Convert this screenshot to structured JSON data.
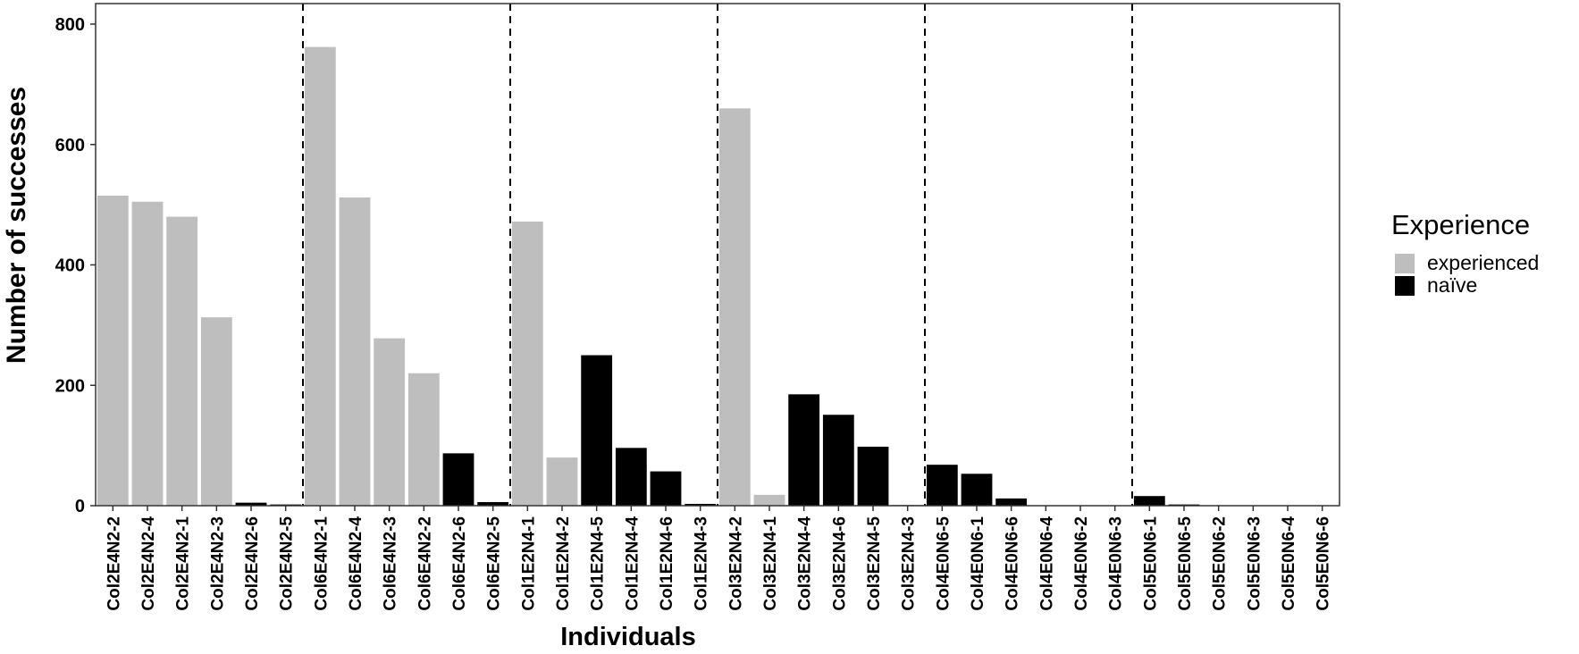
{
  "chart_data": {
    "type": "bar",
    "xlabel": "Individuals",
    "ylabel": "Number of successes",
    "ylim": [
      0,
      800
    ],
    "y_ticks": [
      0,
      200,
      400,
      600,
      800
    ],
    "grid": false,
    "legend": {
      "title": "Experience",
      "placement": "right",
      "entries": [
        {
          "label": "experienced",
          "color": "#bebebe"
        },
        {
          "label": "naïve",
          "color": "#000000"
        }
      ]
    },
    "group_separators_after": [
      "Col2E4N2-5",
      "Col6E4N2-5",
      "Col1E2N4-3",
      "Col3E2N4-3",
      "Col4E0N6-3"
    ],
    "categories": [
      "Col2E4N2-2",
      "Col2E4N2-4",
      "Col2E4N2-1",
      "Col2E4N2-3",
      "Col2E4N2-6",
      "Col2E4N2-5",
      "Col6E4N2-1",
      "Col6E4N2-4",
      "Col6E4N2-3",
      "Col6E4N2-2",
      "Col6E4N2-6",
      "Col6E4N2-5",
      "Col1E2N4-1",
      "Col1E2N4-2",
      "Col1E2N4-5",
      "Col1E2N4-4",
      "Col1E2N4-6",
      "Col1E2N4-3",
      "Col3E2N4-2",
      "Col3E2N4-1",
      "Col3E2N4-4",
      "Col3E2N4-6",
      "Col3E2N4-5",
      "Col3E2N4-3",
      "Col4E0N6-5",
      "Col4E0N6-1",
      "Col4E0N6-6",
      "Col4E0N6-4",
      "Col4E0N6-2",
      "Col4E0N6-3",
      "Col5E0N6-1",
      "Col5E0N6-5",
      "Col5E0N6-2",
      "Col5E0N6-3",
      "Col5E0N6-4",
      "Col5E0N6-6"
    ],
    "values": [
      515,
      505,
      480,
      313,
      5,
      2,
      762,
      512,
      278,
      220,
      87,
      6,
      472,
      80,
      250,
      96,
      57,
      3,
      660,
      18,
      185,
      151,
      98,
      1,
      68,
      53,
      12,
      0,
      0,
      0,
      16,
      2,
      0,
      0,
      0,
      0
    ],
    "experience": [
      "experienced",
      "experienced",
      "experienced",
      "experienced",
      "naïve",
      "naïve",
      "experienced",
      "experienced",
      "experienced",
      "experienced",
      "naïve",
      "naïve",
      "experienced",
      "experienced",
      "naïve",
      "naïve",
      "naïve",
      "naïve",
      "experienced",
      "experienced",
      "naïve",
      "naïve",
      "naïve",
      "naïve",
      "naïve",
      "naïve",
      "naïve",
      "naïve",
      "naïve",
      "naïve",
      "naïve",
      "naïve",
      "naïve",
      "naïve",
      "naïve",
      "naïve"
    ]
  }
}
